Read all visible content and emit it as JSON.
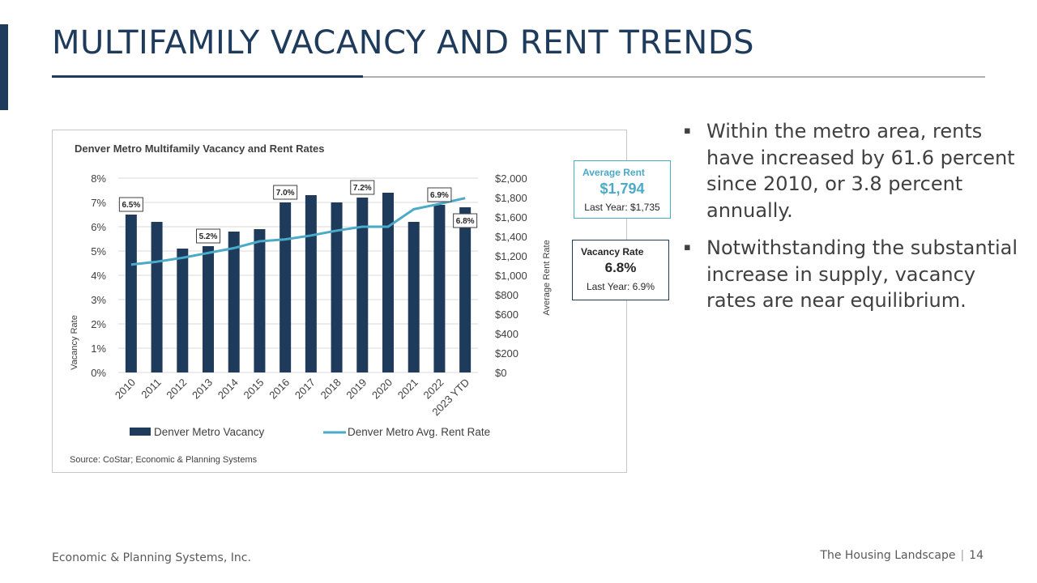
{
  "slide": {
    "title": "MULTIFAMILY VACANCY AND RENT TRENDS",
    "footer_left": "Economic & Planning Systems, Inc.",
    "footer_section": "The Housing Landscape",
    "footer_separator": "|",
    "page_number": "14",
    "bullet_marker": "▪"
  },
  "bullets": [
    "Within the metro area, rents have increased by 61.6 percent since 2010, or 3.8 percent annually.",
    "Notwithstanding the substantial increase in supply, vacancy rates are near equilibrium."
  ],
  "callouts": {
    "rent": {
      "title": "Average Rent",
      "value": "$1,794",
      "last_year": "Last Year: $1,735"
    },
    "vacancy": {
      "title": "Vacancy Rate",
      "value": "6.8%",
      "last_year": "Last Year: 6.9%"
    }
  },
  "chart_data": {
    "type": "bar",
    "title": "Denver Metro Multifamily Vacancy and Rent Rates",
    "source": "Source: CoStar; Economic & Planning Systems",
    "categories": [
      "2010",
      "2011",
      "2012",
      "2013",
      "2014",
      "2015",
      "2016",
      "2017",
      "2018",
      "2019",
      "2020",
      "2021",
      "2022",
      "2023 YTD"
    ],
    "ylabel": "Vacancy Rate",
    "y2label": "Average Rent Rate",
    "ylim": [
      0,
      8
    ],
    "y2lim": [
      0,
      2000
    ],
    "yticks": [
      "0%",
      "1%",
      "2%",
      "3%",
      "4%",
      "5%",
      "6%",
      "7%",
      "8%"
    ],
    "y2ticks": [
      "$0",
      "$200",
      "$400",
      "$600",
      "$800",
      "$1,000",
      "$1,200",
      "$1,400",
      "$1,600",
      "$1,800",
      "$2,000"
    ],
    "series": [
      {
        "name": "Denver Metro Vacancy",
        "type": "bar",
        "axis": "left",
        "color": "#1f3b5c",
        "values": [
          6.5,
          6.2,
          5.1,
          5.2,
          5.8,
          5.9,
          7.0,
          7.3,
          7.0,
          7.2,
          7.4,
          6.2,
          6.9,
          6.8
        ]
      },
      {
        "name": "Denver Metro Avg. Rent Rate",
        "type": "line",
        "axis": "right",
        "color": "#4aaac8",
        "values": [
          1110,
          1140,
          1180,
          1230,
          1280,
          1350,
          1370,
          1410,
          1460,
          1500,
          1500,
          1680,
          1735,
          1794
        ]
      }
    ],
    "data_labels": [
      {
        "index": 0,
        "text": "6.5%",
        "placement": "above"
      },
      {
        "index": 3,
        "text": "5.2%",
        "placement": "above"
      },
      {
        "index": 6,
        "text": "7.0%",
        "placement": "above"
      },
      {
        "index": 9,
        "text": "7.2%",
        "placement": "above"
      },
      {
        "index": 12,
        "text": "6.9%",
        "placement": "above"
      },
      {
        "index": 13,
        "text": "6.8%",
        "placement": "below"
      }
    ],
    "legend_position": "bottom",
    "grid": true
  }
}
